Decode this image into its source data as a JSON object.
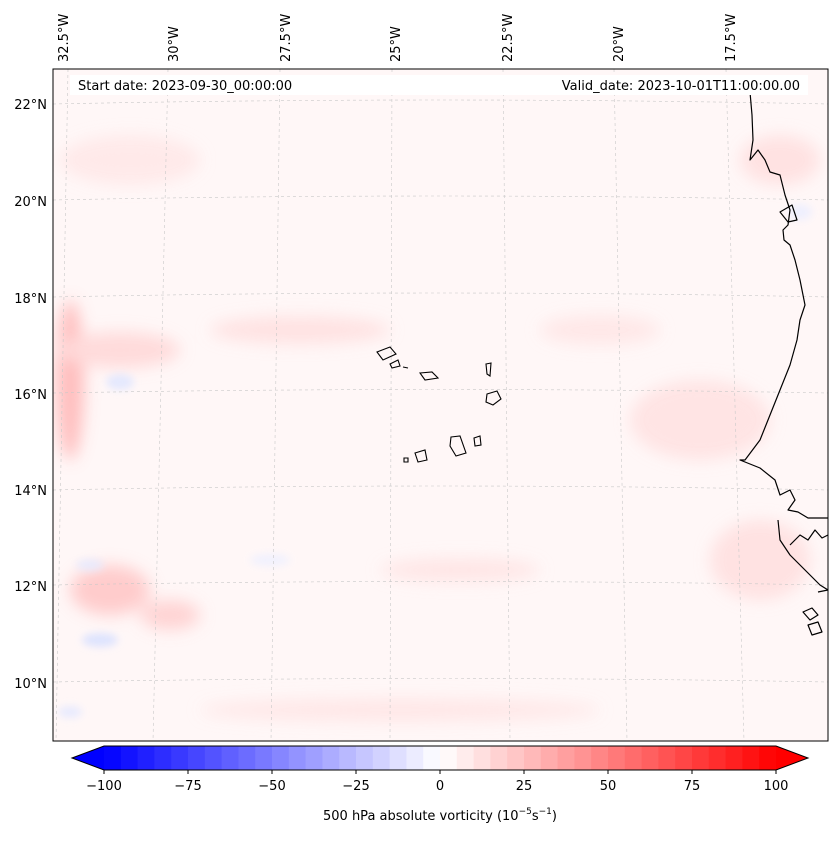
{
  "map": {
    "type": "filled-contour-map",
    "start_date_label": "Start date: 2023-09-30_00:00:00",
    "valid_date_label": "Valid_date: 2023-10-01T11:00:00.00",
    "lon_labels": [
      "32.5°W",
      "30°W",
      "27.5°W",
      "25°W",
      "22.5°W",
      "20°W",
      "17.5°W"
    ],
    "lat_labels": [
      "22°N",
      "20°N",
      "18°N",
      "16°N",
      "14°N",
      "12°N",
      "10°N"
    ],
    "gridlines": true,
    "coastline_color": "#000000",
    "features": [
      "Cape Verde islands",
      "West African coastline (Mauritania, Senegal, Gambia, Guinea-Bissau)"
    ]
  },
  "colorbar": {
    "label_prefix": "500 hPa absolute vorticity (10",
    "label_exp1": "−5",
    "label_mid": "s",
    "label_exp2": "−1",
    "label_suffix": ")",
    "ticks": [
      "−100",
      "−75",
      "−50",
      "−25",
      "0",
      "25",
      "50",
      "75",
      "100"
    ],
    "range": [
      -100,
      100
    ],
    "colormap": "bwr",
    "color_low": "#0000ff",
    "color_mid": "#ffffff",
    "color_high": "#ff0000",
    "extend": "both"
  }
}
